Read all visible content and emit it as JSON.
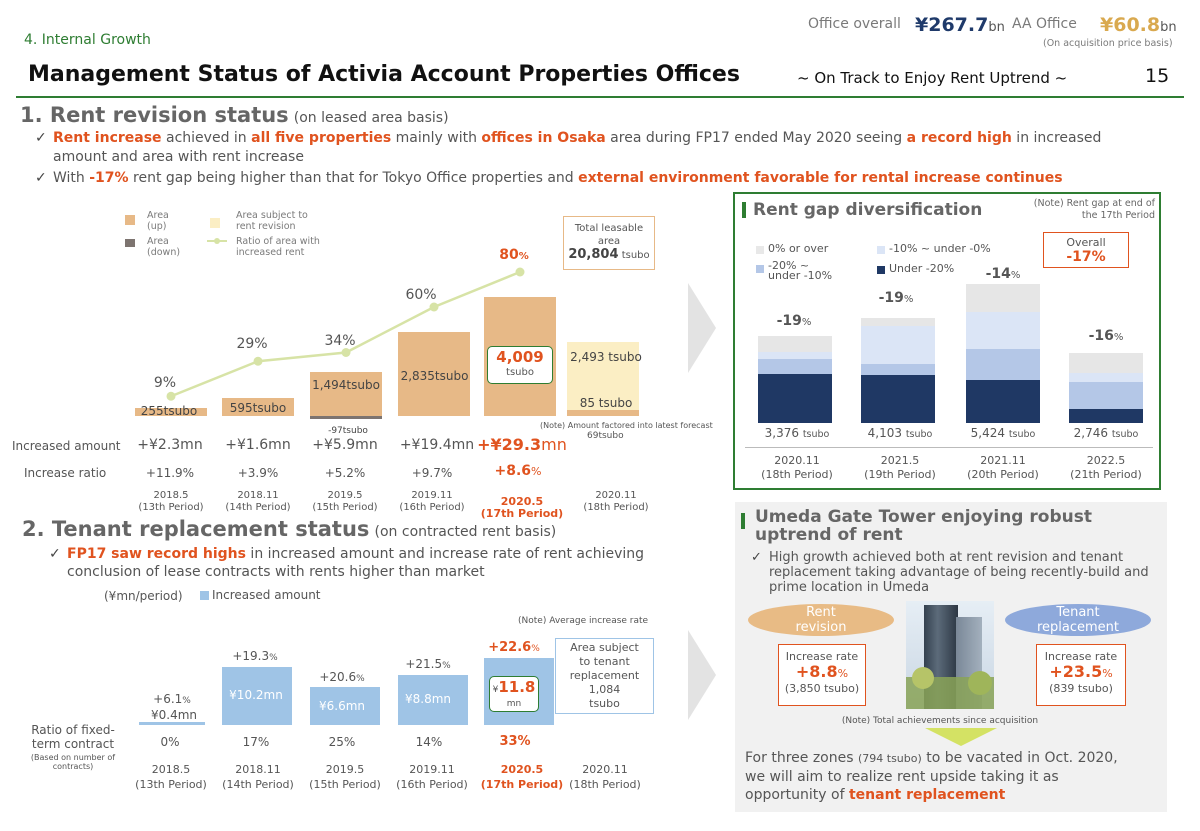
{
  "header": {
    "section": "4. Internal Growth",
    "title": "Management Status of Activia Account Properties Offices",
    "subtitle": "~ On Track to Enjoy Rent Uptrend ~",
    "page_number": "15",
    "office_overall_label": "Office overall",
    "office_overall_value": "¥267.7",
    "office_overall_unit": "bn",
    "aa_office_label": "AA Office",
    "aa_office_value": "¥60.8",
    "aa_office_unit": "bn",
    "basis_note": "(On acquisition price basis)"
  },
  "section1": {
    "heading": "1. Rent revision status",
    "heading_sub": "(on leased area basis)",
    "bullet1_parts": [
      "Rent increase",
      " achieved in ",
      "all five properties",
      " mainly with ",
      "offices in Osaka",
      " area during FP17 ended May 2020 seeing ",
      "a record high",
      " in increased",
      "amount and area with rent increase"
    ],
    "bullet2_parts": [
      "With ",
      "-17%",
      " rent gap being higher than that for Tokyo Office properties and ",
      "external environment favorable for rental increase continues"
    ],
    "legend": {
      "area_up": "Area\n(up)",
      "area_down": "Area\n(down)",
      "area_subject": "Area subject to\nrent revision",
      "ratio": "Ratio of area with\nincreased rent"
    },
    "total_box": {
      "label": "Total leasable\narea",
      "value": "20,804",
      "unit": "tsubo"
    },
    "ratio_labels": [
      "9%",
      "29%",
      "34%",
      "60%",
      "80",
      "%"
    ],
    "bar_labels": [
      "255tsubo",
      "595tsubo",
      "1,494tsubo",
      "2,835tsubo",
      "4,009",
      "tsubo",
      "2,493 tsubo",
      "85 tsubo"
    ],
    "down_label": "-97tsubo",
    "note_forecast": "(Note) Amount factored into latest forecast",
    "forecast_tsubo": "69tsubo",
    "row_increased_label": "Increased amount",
    "increased_amounts": [
      "+¥2.3mn",
      "+¥1.6mn",
      "+¥5.9mn",
      "+¥19.4mn",
      "+¥29.3",
      "mn"
    ],
    "row_ratio_label": "Increase ratio",
    "increase_ratios": [
      "+11.9%",
      "+3.9%",
      "+5.2%",
      "+9.7%",
      "+8.6",
      "%"
    ],
    "periods": [
      "2018.5\n(13th Period)",
      "2018.11\n(14th Period)",
      "2019.5\n(15th Period)",
      "2019.11\n(16th Period)",
      "2020.5\n(17th Period)",
      "2020.11\n(18th Period)"
    ],
    "chart_data": {
      "type": "bar",
      "categories": [
        "2018.5",
        "2018.11",
        "2019.5",
        "2019.11",
        "2020.5",
        "2020.11"
      ],
      "series": [
        {
          "name": "Area (up)",
          "values": [
            255,
            595,
            1494,
            2835,
            4009,
            85
          ]
        },
        {
          "name": "Area (down)",
          "values": [
            0,
            0,
            -97,
            0,
            0,
            0
          ]
        },
        {
          "name": "Area subject to rent revision",
          "values": [
            null,
            null,
            null,
            null,
            null,
            2493
          ]
        },
        {
          "name": "Ratio of area with increased rent",
          "values": [
            9,
            29,
            34,
            60,
            80,
            null
          ]
        }
      ]
    }
  },
  "section2": {
    "heading": "2. Tenant replacement status",
    "heading_sub": "(on contracted rent basis)",
    "bullet_parts": [
      "FP17 saw record highs",
      " in increased amount and increase rate of rent achieving",
      "conclusion of lease contracts with rents higher than market"
    ],
    "unit_label": "(¥mn/period)",
    "legend_label": "Increased amount",
    "note_avg": "(Note) Average increase rate",
    "rates": [
      "+6.1",
      "%",
      "+19.3",
      "%",
      "+20.6",
      "%",
      "+21.5",
      "%",
      "+22.6",
      "%"
    ],
    "bar_values": [
      "¥0.4mn",
      "¥10.2mn",
      "¥6.6mn",
      "¥8.8mn",
      "¥",
      "11.8",
      "mn"
    ],
    "area_box": "Area subject\nto tenant\nreplacement\n1,084\ntsubo",
    "fixed_label": "Ratio of fixed-\nterm contract",
    "fixed_sub": "(Based on number of\ncontracts)",
    "fixed_values": [
      "0%",
      "17%",
      "25%",
      "14%",
      "33%"
    ],
    "periods": [
      "2018.5\n(13th Period)",
      "2018.11\n(14th Period)",
      "2019.5\n(15th Period)",
      "2019.11\n(16th Period)",
      "2020.5\n(17th Period)",
      "2020.11\n(18th Period)"
    ],
    "chart_data": {
      "type": "bar",
      "categories": [
        "2018.5",
        "2018.11",
        "2019.5",
        "2019.11",
        "2020.5"
      ],
      "series": [
        {
          "name": "Increased amount",
          "values": [
            0.4,
            10.2,
            6.6,
            8.8,
            11.8
          ]
        }
      ],
      "average_increase_rate": [
        6.1,
        19.3,
        20.6,
        21.5,
        22.6
      ]
    }
  },
  "rent_gap": {
    "title": "Rent gap diversification",
    "note": "(Note) Rent gap at end of\nthe 17th Period",
    "legend": [
      "0% or over",
      "-10% ~ under -0%",
      "-20% ~\nunder -10%",
      "Under -20%"
    ],
    "overall_label": "Overall",
    "overall_value": "-17%",
    "gap_values": [
      "-19",
      "-19",
      "-14",
      "-16"
    ],
    "tsubo_values": [
      "3,376",
      "4,103",
      "5,424",
      "2,746"
    ],
    "tsubo_unit": "tsubo",
    "periods": [
      "2020.11\n(18th Period)",
      "2021.5\n(19th Period)",
      "2021.11\n(20th Period)",
      "2022.5\n(21th Period)"
    ],
    "chart_data": {
      "type": "bar",
      "categories": [
        "2020.11",
        "2021.5",
        "2021.11",
        "2022.5"
      ],
      "series": [
        {
          "name": "Under -20%",
          "values": [
            0.57,
            0.46,
            0.31,
            0.2
          ]
        },
        {
          "name": "-20% ~ under -10%",
          "values": [
            0.17,
            0.1,
            0.22,
            0.38
          ]
        },
        {
          "name": "-10% ~ under -0%",
          "values": [
            0.08,
            0.36,
            0.27,
            0.13
          ]
        },
        {
          "name": "0% or over",
          "values": [
            0.18,
            0.08,
            0.2,
            0.29
          ]
        }
      ],
      "totals_tsubo": [
        3376,
        4103,
        5424,
        2746
      ],
      "rent_gap_pct": [
        -19,
        -19,
        -14,
        -16
      ]
    }
  },
  "umeda": {
    "title": "Umeda Gate Tower enjoying robust\nuptrend of rent",
    "bullet": "High growth achieved both at rent revision and tenant\nreplacement taking advantage of being recently-build and\nprime location in Umeda",
    "rent_revision": "Rent\nrevision",
    "tenant_replacement": "Tenant\nreplacement",
    "left_box": {
      "label": "Increase rate",
      "value": "+8.8",
      "pct": "%",
      "sub": "(3,850 tsubo)"
    },
    "right_box": {
      "label": "Increase rate",
      "value": "+23.5",
      "pct": "%",
      "sub": "(839 tsubo)"
    },
    "note": "(Note) Total achievements since acquisition",
    "closing_parts": [
      "For three zones ",
      "(794 tsubo)",
      " to be vacated in Oct. 2020,",
      "we will aim to realize rent upside taking it as",
      "opportunity of ",
      "tenant replacement"
    ]
  },
  "colors": {
    "accent_green": "#2e7d32",
    "accent_orange": "#e0531f",
    "bar_tan": "#e7b987",
    "bar_light": "#fbeec4",
    "bar_blue": "#9fc4e6",
    "navy": "#1f3a6a",
    "gold": "#d9a94f"
  }
}
